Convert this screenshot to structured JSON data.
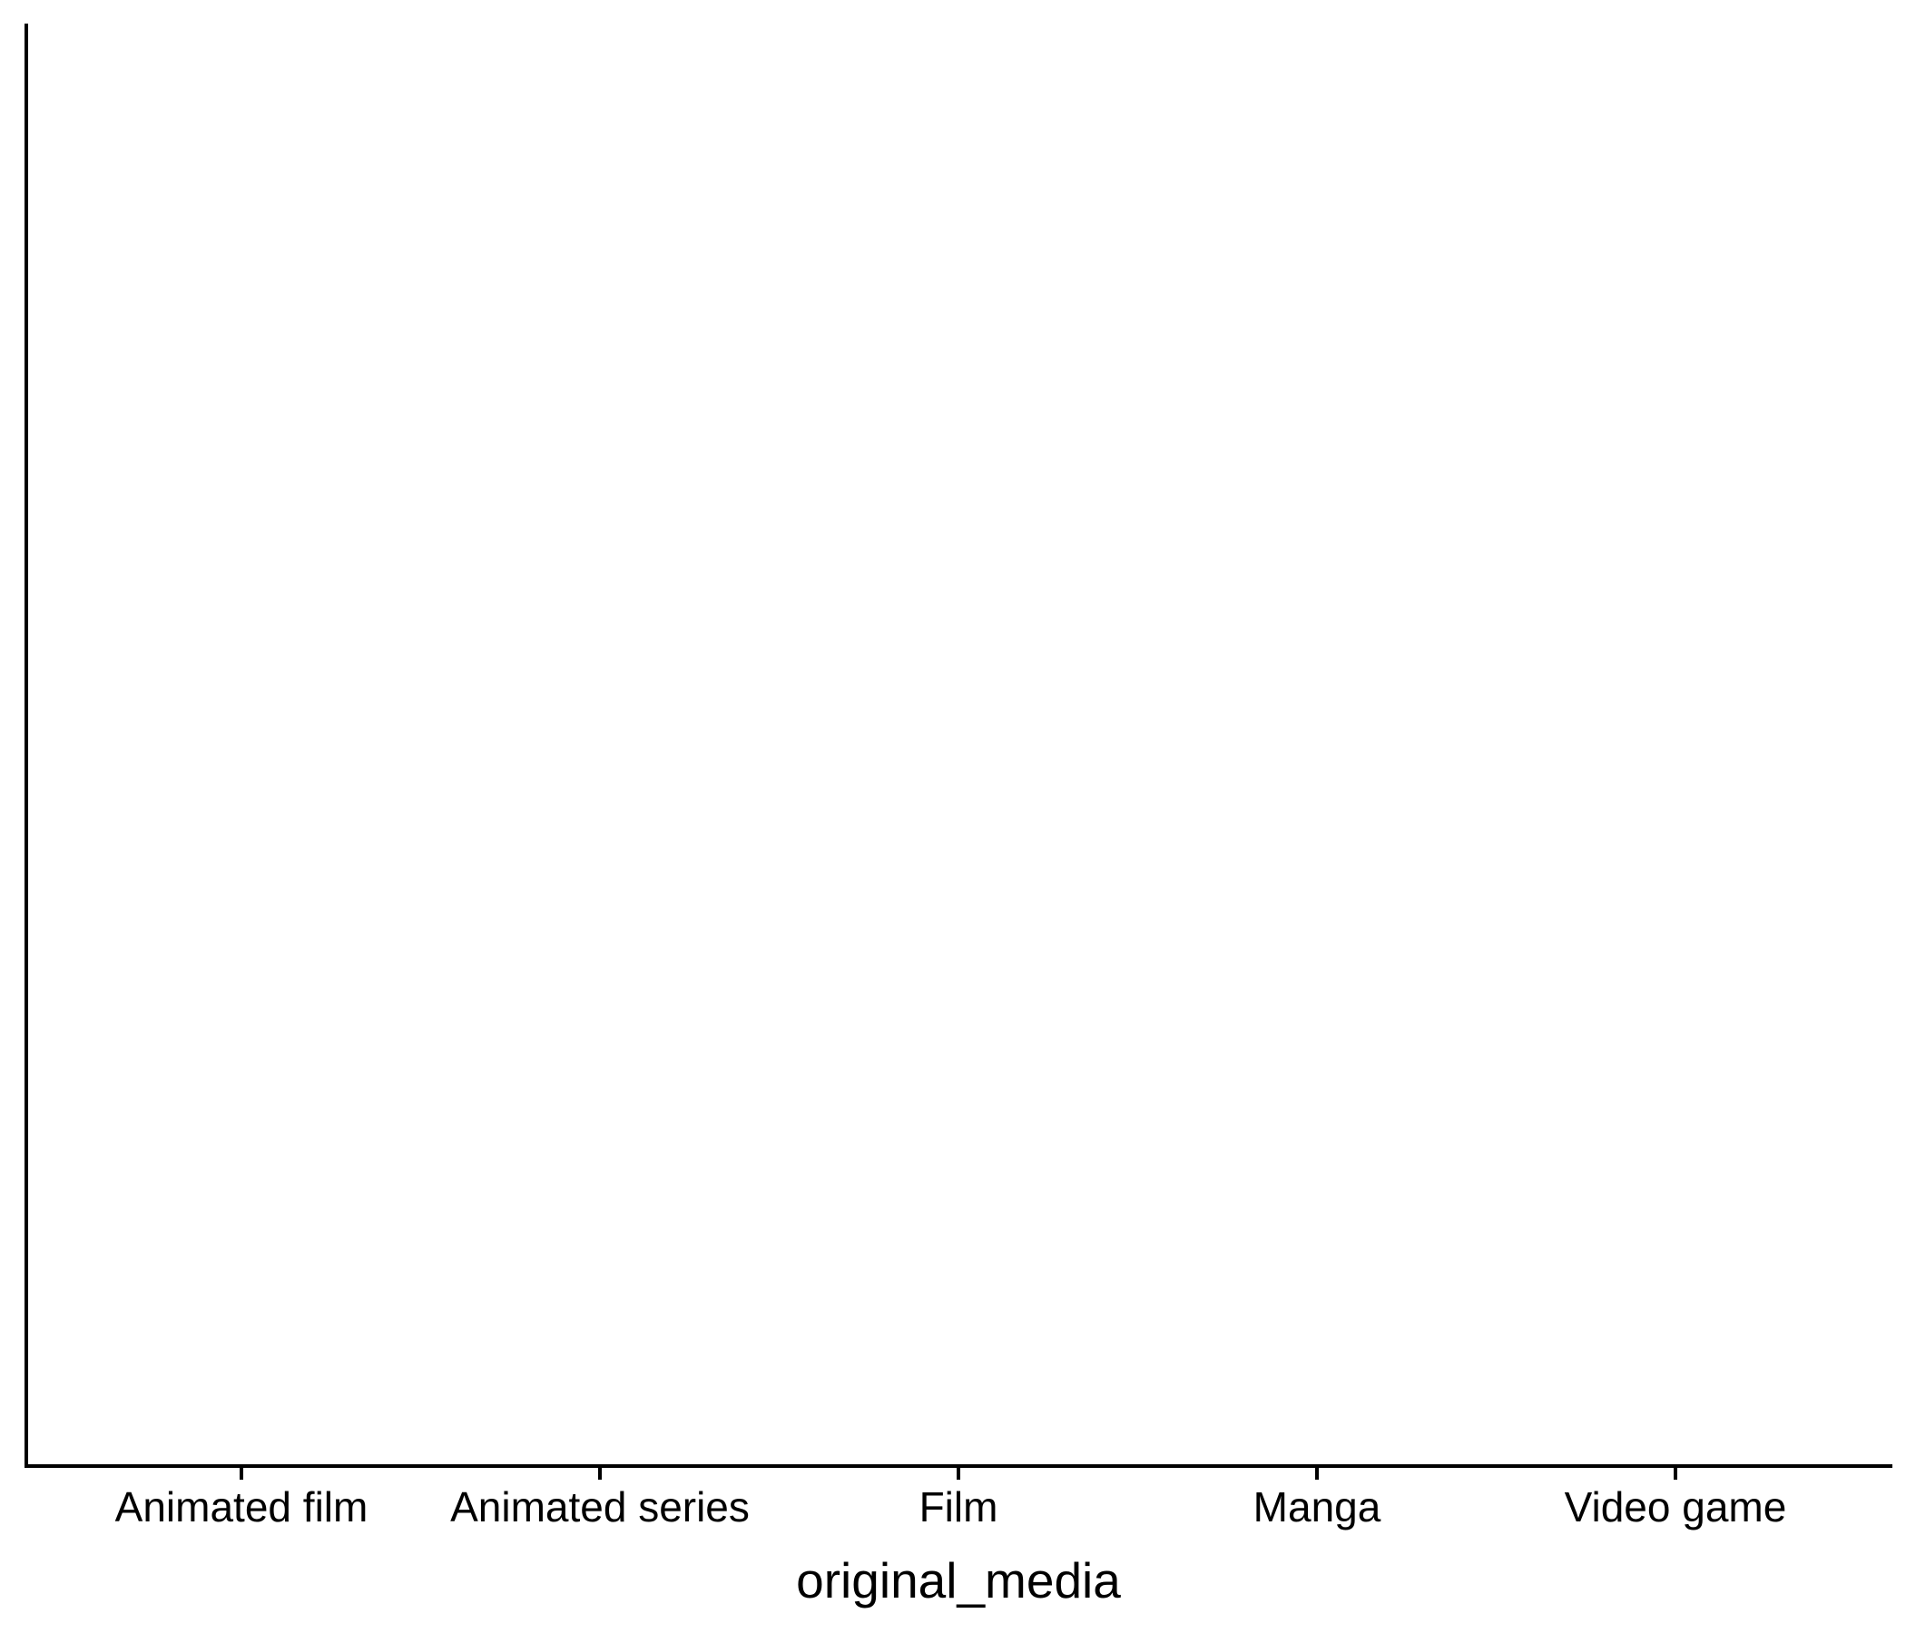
{
  "chart_data": {
    "type": "bar",
    "categories": [
      "Animated film",
      "Animated series",
      "Film",
      "Manga",
      "Video game"
    ],
    "series": [
      {
        "values": [
          null,
          null,
          null,
          null,
          null
        ]
      }
    ],
    "title": "",
    "xlabel": "original_media",
    "ylabel": "",
    "grid": false,
    "legend": "none",
    "colors": {
      "axis": "#000000",
      "background": "#ffffff"
    }
  }
}
